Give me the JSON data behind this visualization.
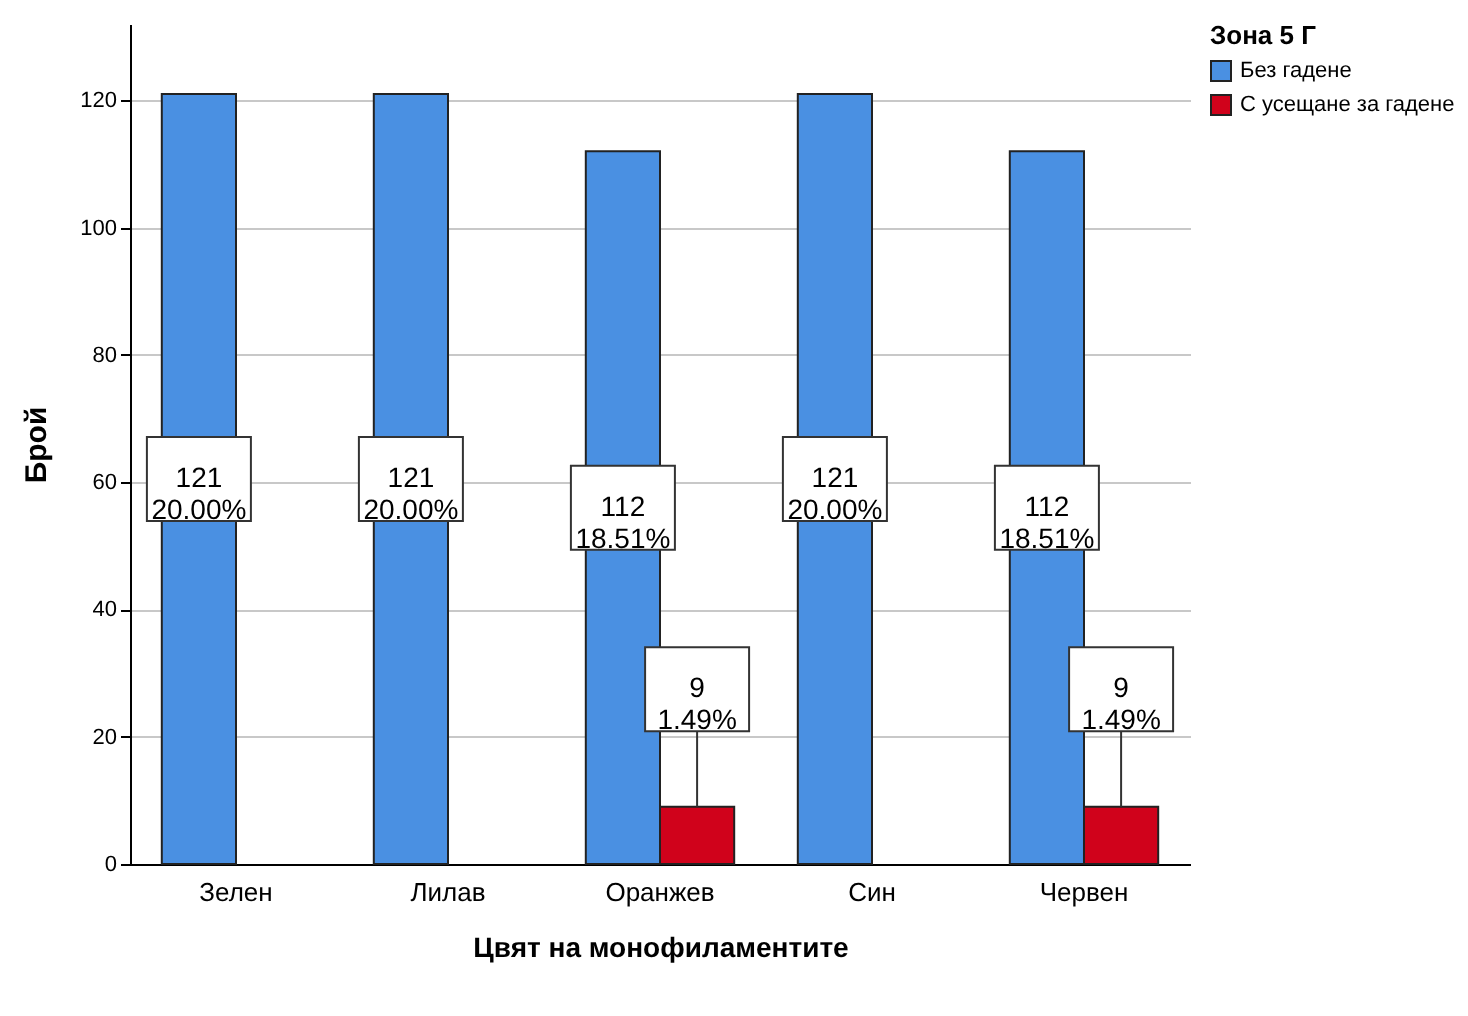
{
  "chart_data": {
    "type": "bar",
    "xlabel": "Цвят на монофиламентите",
    "ylabel": "Брой",
    "legend_title": "Зона 5 Г",
    "categories": [
      "Зелен",
      "Лилав",
      "Оранжев",
      "Син",
      "Червен"
    ],
    "series": [
      {
        "name": "Без гадене",
        "color": "#4a90e2",
        "values": [
          121,
          121,
          112,
          121,
          112
        ],
        "value_labels": [
          "121\n20.00%",
          "121\n20.00%",
          "112\n18.51%",
          "121\n20.00%",
          "112\n18.51%"
        ]
      },
      {
        "name": "С усещане за гадене",
        "color": "#d0021b",
        "values": [
          null,
          null,
          9,
          null,
          9
        ],
        "value_labels": [
          null,
          null,
          "9\n1.49%",
          null,
          "9\n1.49%"
        ]
      }
    ],
    "ylim": [
      0,
      132
    ],
    "yticks": [
      0,
      20,
      40,
      60,
      80,
      100,
      120
    ],
    "grid": "y",
    "legend": "top right"
  }
}
